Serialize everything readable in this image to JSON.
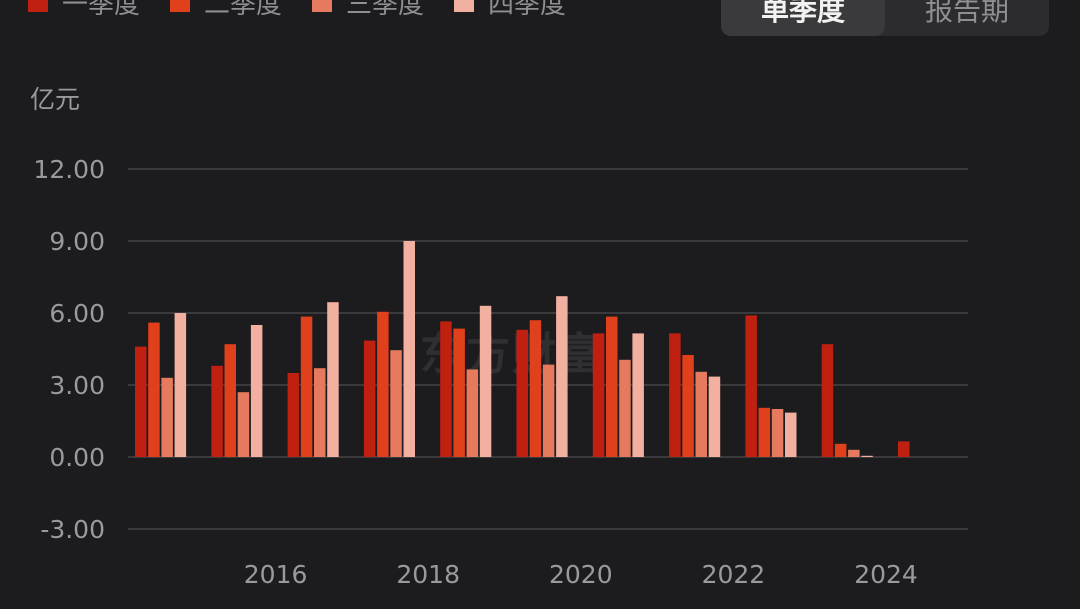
{
  "legend": [
    {
      "label": "一季度",
      "color": "#c0200f"
    },
    {
      "label": "二季度",
      "color": "#e0401c"
    },
    {
      "label": "三季度",
      "color": "#e67a5e"
    },
    {
      "label": "四季度",
      "color": "#f2b0a0"
    }
  ],
  "toggle": {
    "active_label": "单季度",
    "inactive_label": "报告期"
  },
  "watermark": "东方财富",
  "chart_data": {
    "type": "bar",
    "unit": "亿元",
    "ylim": [
      -3,
      12
    ],
    "yticks": [
      "12.00",
      "9.00",
      "6.00",
      "3.00",
      "0.00",
      "-3.00"
    ],
    "ytick_values": [
      12,
      9,
      6,
      3,
      0,
      -3
    ],
    "x_labels": [
      {
        "label": "2016",
        "after_group": 1
      },
      {
        "label": "2018",
        "after_group": 3
      },
      {
        "label": "2020",
        "after_group": 5
      },
      {
        "label": "2022",
        "after_group": 7
      },
      {
        "label": "2024",
        "after_group": 9
      }
    ],
    "grid": true,
    "legend_position": "top-left",
    "series": [
      {
        "name": "一季度",
        "color": "#c0200f"
      },
      {
        "name": "二季度",
        "color": "#e0401c"
      },
      {
        "name": "三季度",
        "color": "#e67a5e"
      },
      {
        "name": "四季度",
        "color": "#f2b0a0"
      }
    ],
    "groups": [
      [
        4.6,
        5.6,
        3.3,
        6.0
      ],
      [
        3.8,
        4.7,
        2.7,
        5.5
      ],
      [
        3.5,
        5.85,
        3.7,
        6.45
      ],
      [
        4.85,
        6.05,
        4.45,
        9.0
      ],
      [
        5.65,
        5.35,
        3.65,
        6.3
      ],
      [
        5.3,
        5.7,
        3.85,
        6.7
      ],
      [
        5.15,
        5.85,
        4.05,
        5.15
      ],
      [
        5.15,
        4.25,
        3.55,
        3.35
      ],
      [
        5.9,
        2.05,
        2.0,
        1.85
      ],
      [
        4.7,
        0.55,
        0.3,
        0.05
      ],
      [
        0.65
      ]
    ]
  }
}
